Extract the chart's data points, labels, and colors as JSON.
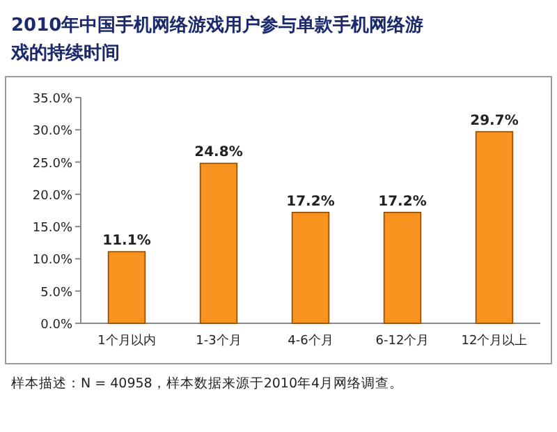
{
  "chart_data": {
    "type": "bar",
    "title": "2010年中国手机网络游戏用户参与单款手机网络游戏的持续时间",
    "categories": [
      "1个月以内",
      "1-3个月",
      "4-6个月",
      "6-12个月",
      "12个月以上"
    ],
    "values": [
      11.1,
      24.8,
      17.2,
      17.2,
      29.7
    ],
    "value_labels": [
      "11.1%",
      "24.8%",
      "17.2%",
      "17.2%",
      "29.7%"
    ],
    "color": "#f7931e",
    "ylim": [
      0,
      35
    ],
    "yticks": [
      {
        "value": 0,
        "label": "0.0%"
      },
      {
        "value": 5,
        "label": "5.0%"
      },
      {
        "value": 10,
        "label": "10.0%"
      },
      {
        "value": 15,
        "label": "15.0%"
      },
      {
        "value": 20,
        "label": "20.0%"
      },
      {
        "value": 25,
        "label": "25.0%"
      },
      {
        "value": 30,
        "label": "30.0%"
      },
      {
        "value": 35,
        "label": "35.0%"
      }
    ],
    "grid": false,
    "annotations": [
      "样本描述：N = 40958，样本数据来源于2010年4月网络调查。"
    ]
  }
}
